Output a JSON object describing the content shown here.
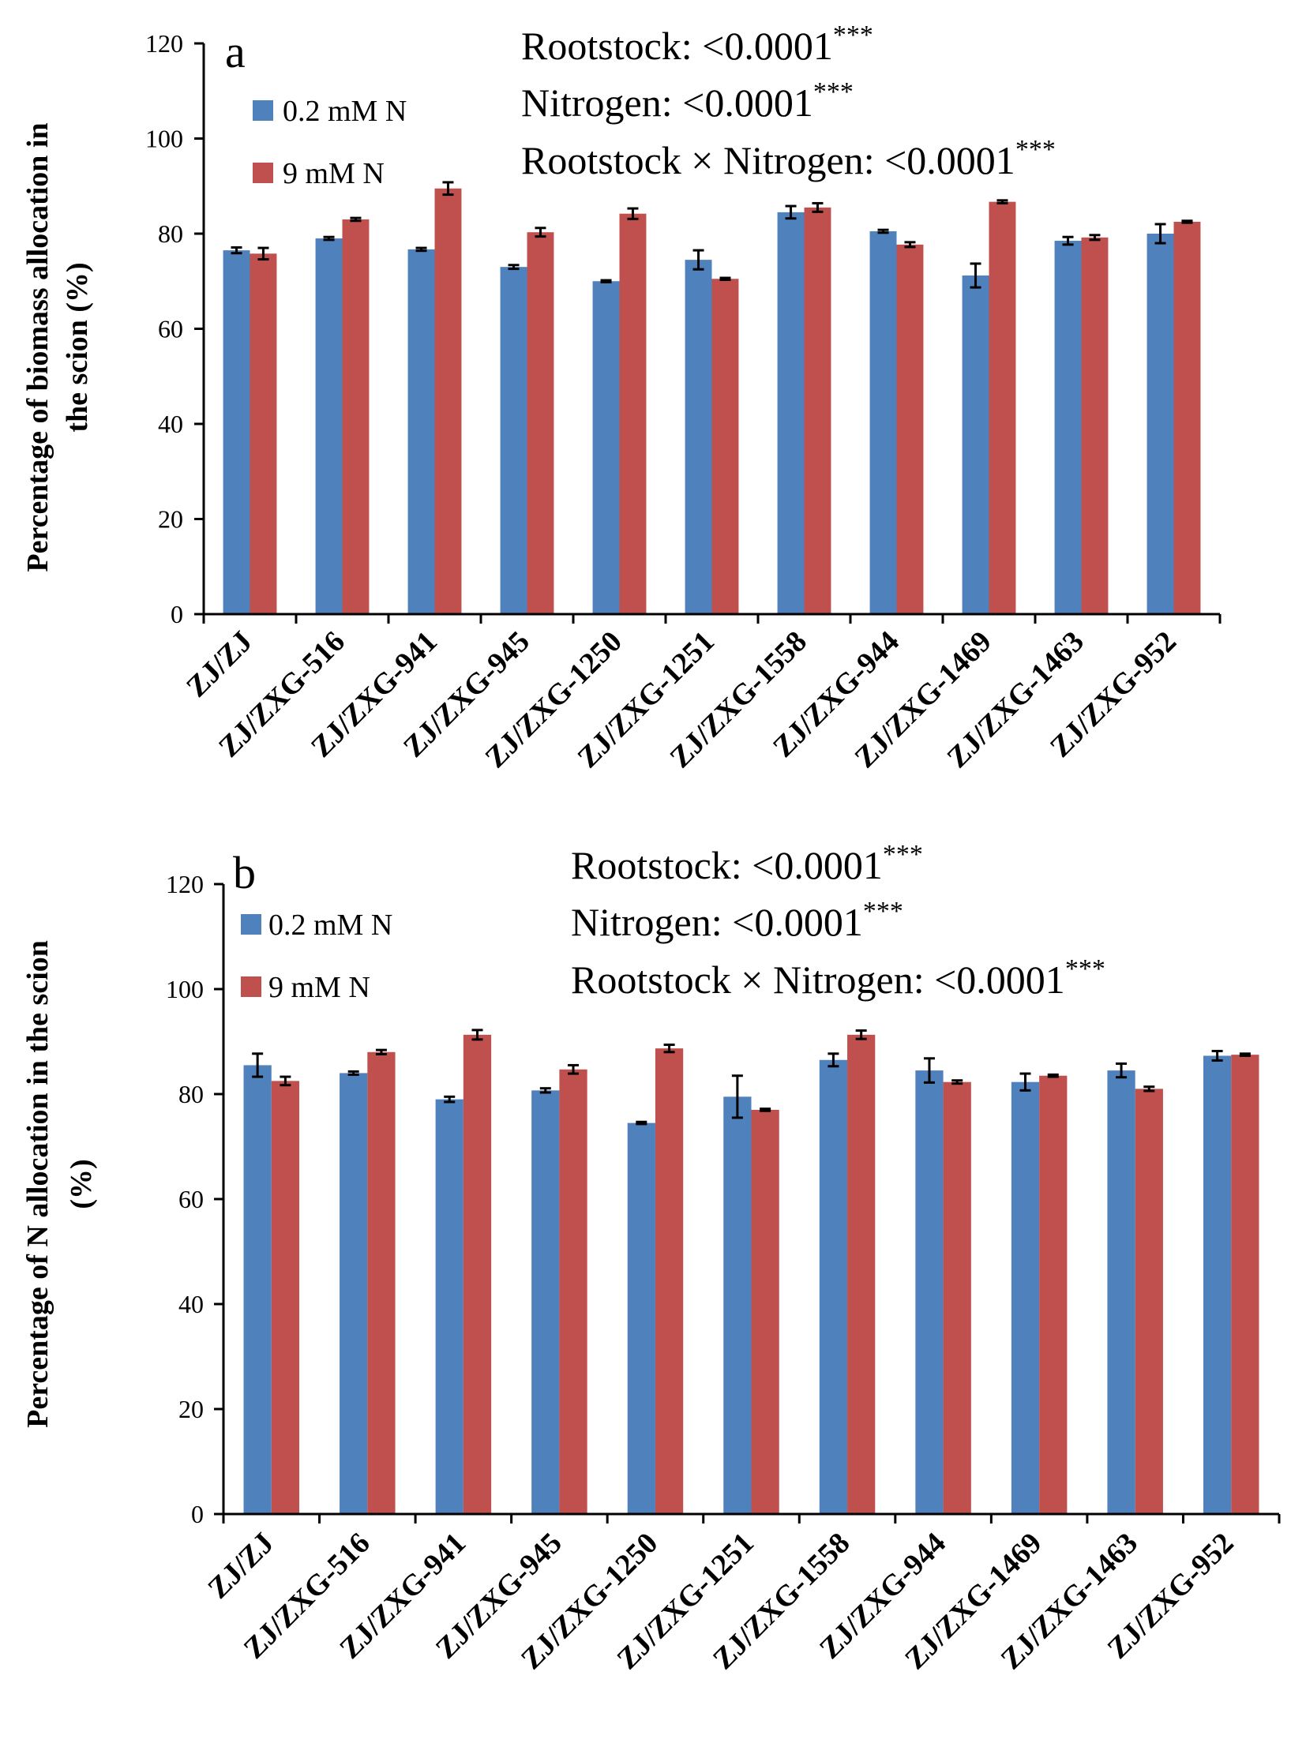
{
  "colors": {
    "series_low": "#4f81bd",
    "series_high": "#c0504d",
    "axis": "#000000"
  },
  "chart_data": [
    {
      "type": "bar",
      "panel_label": "a",
      "ylabel_line1": "Percentage of biomass allocation in",
      "ylabel_line2": "the scion (%)",
      "ylim": [
        0,
        120
      ],
      "yticks": [
        0,
        20,
        40,
        60,
        80,
        100,
        120
      ],
      "categories": [
        "ZJ/ZJ",
        "ZJ/ZXG-516",
        "ZJ/ZXG-941",
        "ZJ/ZXG-945",
        "ZJ/ZXG-1250",
        "ZJ/ZXG-1251",
        "ZJ/ZXG-1558",
        "ZJ/ZXG-944",
        "ZJ/ZXG-1469",
        "ZJ/ZXG-1463",
        "ZJ/ZXG-952"
      ],
      "series": [
        {
          "name": "0.2 mM N",
          "values": [
            76.5,
            79.0,
            76.7,
            73.0,
            70.0,
            74.5,
            84.5,
            80.5,
            71.2,
            78.5,
            80.0
          ],
          "errors": [
            0.6,
            0.3,
            0.3,
            0.4,
            0.2,
            2.0,
            1.3,
            0.3,
            2.5,
            0.8,
            2.0
          ]
        },
        {
          "name": "9 mM N",
          "values": [
            75.8,
            83.0,
            89.5,
            80.3,
            84.2,
            70.5,
            85.5,
            77.7,
            86.7,
            79.2,
            82.5
          ],
          "errors": [
            1.2,
            0.3,
            1.3,
            0.9,
            1.1,
            0.2,
            0.9,
            0.5,
            0.3,
            0.5,
            0.2
          ]
        }
      ],
      "stats": [
        {
          "text": "Rootstock:  <0.0001",
          "sig": "***"
        },
        {
          "text": "Nitrogen: <0.0001",
          "sig": "***"
        },
        {
          "text": "Rootstock × Nitrogen: <0.0001",
          "sig": "***"
        }
      ]
    },
    {
      "type": "bar",
      "panel_label": "b",
      "ylabel_line1": "Percentage of N allocation in the scion",
      "ylabel_line2": "(%)",
      "ylim": [
        0,
        120
      ],
      "yticks": [
        0,
        20,
        40,
        60,
        80,
        100,
        120
      ],
      "categories": [
        "ZJ/ZJ",
        "ZJ/ZXG-516",
        "ZJ/ZXG-941",
        "ZJ/ZXG-945",
        "ZJ/ZXG-1250",
        "ZJ/ZXG-1251",
        "ZJ/ZXG-1558",
        "ZJ/ZXG-944",
        "ZJ/ZXG-1469",
        "ZJ/ZXG-1463",
        "ZJ/ZXG-952"
      ],
      "series": [
        {
          "name": "0.2 mM N",
          "values": [
            85.5,
            84.0,
            79.0,
            80.7,
            74.5,
            79.5,
            86.5,
            84.5,
            82.3,
            84.5,
            87.3
          ],
          "errors": [
            2.2,
            0.3,
            0.5,
            0.4,
            0.2,
            4.0,
            1.2,
            2.3,
            1.6,
            1.3,
            0.9
          ]
        },
        {
          "name": "9 mM N",
          "values": [
            82.5,
            88.0,
            91.3,
            84.7,
            88.7,
            77.0,
            91.3,
            82.3,
            83.5,
            81.0,
            87.5
          ],
          "errors": [
            0.8,
            0.4,
            0.9,
            0.8,
            0.7,
            0.2,
            0.8,
            0.3,
            0.2,
            0.4,
            0.2
          ]
        }
      ],
      "stats": [
        {
          "text": "Rootstock:  <0.0001",
          "sig": "***"
        },
        {
          "text": "Nitrogen: <0.0001",
          "sig": "***"
        },
        {
          "text": "Rootstock × Nitrogen: <0.0001",
          "sig": "***"
        }
      ]
    }
  ]
}
